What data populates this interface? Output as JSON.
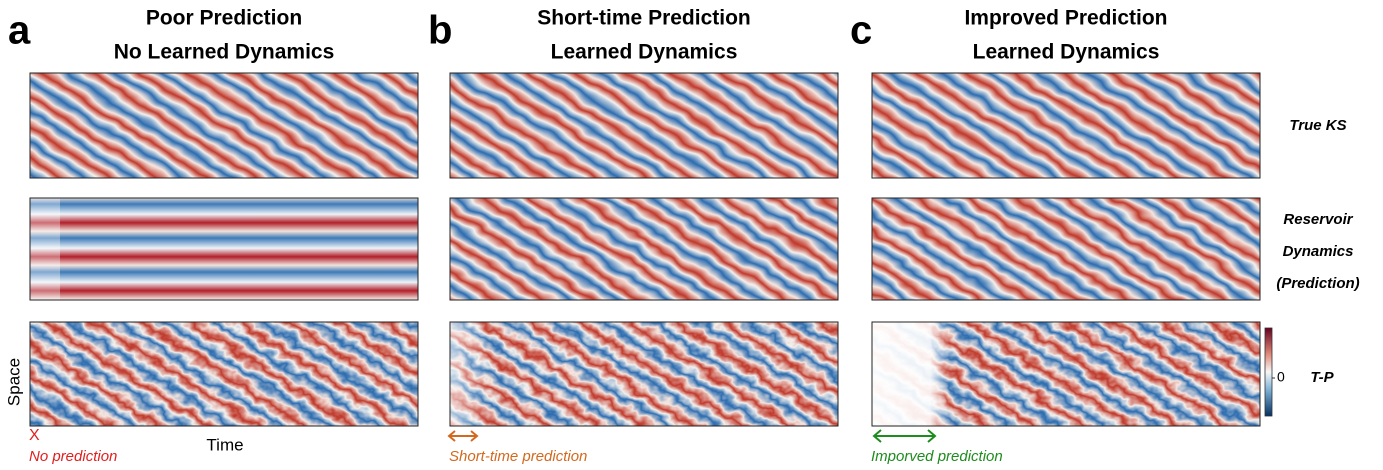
{
  "panels": [
    {
      "letter": "a",
      "title": [
        "Poor Prediction",
        "No Learned Dynamics"
      ],
      "note": "No prediction",
      "marker": "X"
    },
    {
      "letter": "b",
      "title": [
        "Short-time Prediction",
        "Learned Dynamics"
      ],
      "note": "Short-time prediction"
    },
    {
      "letter": "c",
      "title": [
        "Improved Prediction",
        "Learned Dynamics"
      ],
      "note": "Imporved prediction"
    }
  ],
  "row_labels": [
    [
      "True KS"
    ],
    [
      "Reservoir",
      "Dynamics",
      "(Prediction)"
    ],
    [
      "T-P"
    ]
  ],
  "axes": {
    "x": "Time",
    "y": "Space"
  },
  "colorbar": {
    "tick": "0"
  }
}
